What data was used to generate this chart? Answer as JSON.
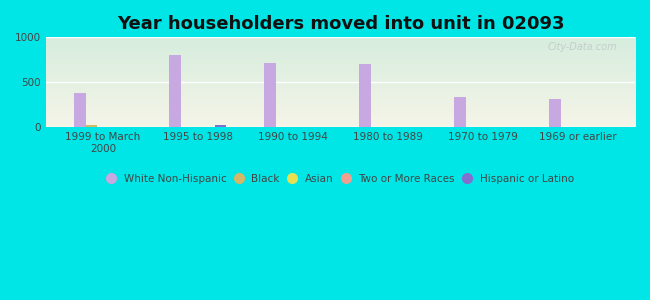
{
  "title": "Year householders moved into unit in 02093",
  "categories": [
    "1999 to March\n2000",
    "1995 to 1998",
    "1990 to 1994",
    "1980 to 1989",
    "1970 to 1979",
    "1969 or earlier"
  ],
  "series": {
    "White Non-Hispanic": [
      380,
      800,
      720,
      700,
      340,
      310
    ],
    "Black": [
      20,
      5,
      0,
      0,
      0,
      0
    ],
    "Asian": [
      0,
      0,
      0,
      0,
      0,
      0
    ],
    "Two or More Races": [
      0,
      0,
      0,
      0,
      5,
      0
    ],
    "Hispanic or Latino": [
      0,
      30,
      0,
      0,
      0,
      0
    ]
  },
  "colors": {
    "White Non-Hispanic": "#c8a8e0",
    "Black": "#d4b86a",
    "Asian": "#e8e050",
    "Two or More Races": "#f0a090",
    "Hispanic or Latino": "#8070d0"
  },
  "ylim": [
    0,
    1000
  ],
  "yticks": [
    0,
    500,
    1000
  ],
  "figure_bg": "#00e5e5",
  "plot_bg_top": "#d8eedd",
  "plot_bg_bottom": "#f5f5e8",
  "bar_width": 0.12,
  "title_fontsize": 13,
  "tick_fontsize": 7.5,
  "legend_fontsize": 7.5
}
